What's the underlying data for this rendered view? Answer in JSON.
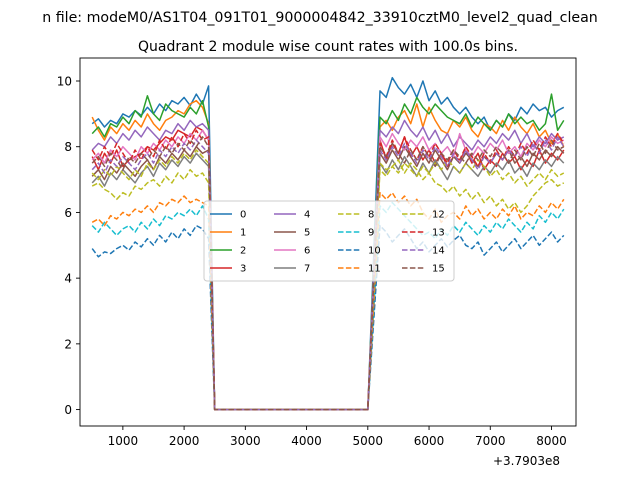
{
  "chart_data": {
    "type": "line",
    "suptitle": "n file: modeM0/AS1T04_091T01_9000004842_33910cztM0_level2_quad_clean",
    "title": "Quadrant 2 module wise count rates with 100.0s bins.",
    "xlabel": "",
    "ylabel": "",
    "offset_text": "+3.7903e8",
    "xlim": [
      300,
      8400
    ],
    "ylim": [
      -0.5,
      10.7
    ],
    "xticks": [
      1000,
      2000,
      3000,
      4000,
      5000,
      6000,
      7000,
      8000
    ],
    "xtick_labels": [
      "1000",
      "2000",
      "3000",
      "4000",
      "5000",
      "6000",
      "7000",
      "8000"
    ],
    "yticks": [
      0,
      2,
      4,
      6,
      8,
      10
    ],
    "ytick_labels": [
      "0",
      "2",
      "4",
      "6",
      "8",
      "10"
    ],
    "legend": {
      "placement": "center",
      "columns": 4
    },
    "x_start": 500,
    "x_step": 100,
    "gap": {
      "start": 2300,
      "zero_from": 2500,
      "zero_to": 5000,
      "end": 5200
    },
    "series": [
      {
        "name": "0",
        "color": "#1f77b4",
        "style": "solid",
        "pre": [
          8.7,
          8.85,
          8.6,
          8.8,
          8.7,
          9.0,
          8.9,
          9.1,
          8.95,
          9.2,
          9.0,
          9.3,
          9.1,
          9.4,
          9.3,
          9.5,
          9.25,
          9.6,
          9.3,
          9.85
        ],
        "post": [
          9.7,
          9.5,
          10.1,
          9.8,
          9.6,
          9.9,
          9.5,
          10.0,
          9.4,
          9.7,
          9.3,
          9.5,
          9.2,
          9.0,
          9.2,
          8.9,
          8.7,
          8.9,
          8.5,
          8.8,
          8.6,
          9.0,
          8.8,
          9.2,
          9.0,
          9.3,
          9.1,
          9.2,
          8.9,
          9.1,
          9.2
        ]
      },
      {
        "name": "1",
        "color": "#ff7f0e",
        "style": "solid",
        "pre": [
          8.9,
          8.5,
          8.2,
          8.6,
          8.4,
          8.7,
          8.5,
          8.8,
          8.6,
          9.0,
          8.7,
          8.5,
          8.8,
          8.9,
          9.1,
          9.0,
          9.3,
          9.4,
          9.2,
          8.7
        ],
        "post": [
          8.6,
          8.8,
          8.5,
          8.9,
          9.1,
          8.7,
          9.3,
          8.6,
          9.2,
          8.8,
          8.5,
          8.4,
          8.8,
          8.6,
          8.9,
          8.5,
          8.3,
          8.7,
          8.6,
          8.4,
          8.8,
          8.5,
          8.9,
          8.6,
          8.4,
          8.7,
          8.3,
          8.5,
          8.1,
          8.4,
          8.0
        ]
      },
      {
        "name": "2",
        "color": "#2ca02c",
        "style": "solid",
        "pre": [
          8.4,
          8.6,
          8.3,
          8.7,
          8.6,
          8.9,
          8.7,
          9.1,
          8.9,
          9.55,
          9.0,
          8.8,
          9.3,
          9.1,
          9.0,
          8.9,
          9.2,
          9.0,
          9.4,
          8.6
        ],
        "post": [
          8.9,
          8.7,
          9.1,
          8.8,
          9.3,
          9.0,
          9.5,
          9.2,
          9.0,
          9.3,
          9.1,
          8.9,
          8.8,
          8.7,
          9.0,
          8.6,
          8.9,
          8.7,
          8.5,
          8.8,
          8.6,
          9.0,
          8.7,
          8.9,
          8.7,
          8.8,
          8.5,
          8.7,
          9.6,
          8.5,
          8.8
        ]
      },
      {
        "name": "3",
        "color": "#d62728",
        "style": "solid",
        "pre": [
          7.7,
          7.3,
          7.8,
          7.5,
          7.9,
          7.4,
          7.6,
          7.7,
          7.8,
          8.0,
          7.9,
          8.1,
          8.3,
          8.2,
          8.5,
          8.4,
          8.3,
          8.6,
          8.5,
          8.2
        ],
        "post": [
          8.2,
          7.6,
          8.1,
          7.8,
          8.3,
          7.7,
          8.0,
          7.6,
          7.9,
          7.5,
          7.8,
          7.4,
          7.7,
          7.6,
          7.9,
          7.5,
          7.8,
          7.3,
          7.6,
          7.4,
          7.8,
          7.5,
          7.7,
          7.3,
          7.6,
          7.4,
          7.9,
          7.5,
          7.8,
          7.6,
          7.9
        ]
      },
      {
        "name": "4",
        "color": "#9467bd",
        "style": "solid",
        "pre": [
          7.9,
          8.1,
          8.0,
          8.3,
          8.1,
          8.4,
          8.2,
          8.5,
          8.3,
          8.6,
          8.4,
          8.2,
          8.5,
          8.4,
          8.7,
          8.5,
          8.8,
          8.6,
          8.7,
          8.5
        ],
        "post": [
          8.5,
          8.3,
          8.6,
          8.4,
          8.8,
          8.5,
          8.3,
          8.6,
          8.2,
          8.5,
          8.1,
          8.4,
          8.0,
          8.3,
          8.1,
          7.9,
          8.2,
          8.0,
          8.3,
          8.1,
          8.4,
          8.2,
          8.5,
          8.1,
          8.4,
          8.0,
          8.3,
          8.1,
          8.4,
          8.2,
          8.3
        ]
      },
      {
        "name": "5",
        "color": "#8c564b",
        "style": "solid",
        "pre": [
          7.1,
          7.3,
          7.0,
          7.4,
          7.2,
          7.5,
          7.3,
          7.1,
          7.4,
          7.6,
          7.3,
          7.7,
          7.5,
          7.8,
          7.6,
          7.9,
          7.7,
          8.0,
          7.8,
          7.9
        ],
        "post": [
          7.8,
          7.5,
          7.9,
          7.6,
          8.0,
          7.7,
          7.4,
          7.8,
          7.5,
          7.9,
          7.6,
          7.3,
          7.7,
          7.5,
          7.8,
          7.6,
          7.4,
          7.7,
          7.5,
          7.8,
          7.6,
          7.9,
          7.5,
          7.7,
          7.4,
          7.8,
          7.6,
          7.9,
          7.7,
          8.0,
          7.8
        ]
      },
      {
        "name": "6",
        "color": "#e377c2",
        "style": "solid",
        "pre": [
          7.6,
          7.8,
          7.5,
          7.9,
          7.7,
          8.0,
          7.8,
          7.6,
          8.0,
          7.8,
          8.1,
          7.9,
          8.2,
          8.0,
          8.3,
          8.1,
          8.4,
          8.2,
          8.5,
          8.2
        ],
        "post": [
          8.3,
          8.0,
          8.4,
          8.1,
          7.9,
          8.2,
          8.0,
          8.3,
          7.9,
          8.1,
          7.8,
          8.0,
          7.7,
          8.4,
          7.9,
          7.7,
          8.0,
          7.8,
          8.1,
          7.9,
          8.2,
          7.8,
          8.0,
          7.7,
          8.1,
          7.9,
          8.2,
          8.0,
          8.3,
          8.1,
          8.2
        ]
      },
      {
        "name": "7",
        "color": "#7f7f7f",
        "style": "solid",
        "pre": [
          6.9,
          7.1,
          6.8,
          7.2,
          7.0,
          7.3,
          7.1,
          6.9,
          7.2,
          7.4,
          7.1,
          7.5,
          7.3,
          7.6,
          7.4,
          7.7,
          7.5,
          7.8,
          7.6,
          7.4
        ],
        "post": [
          7.5,
          7.2,
          7.6,
          7.3,
          7.7,
          7.4,
          7.1,
          7.5,
          7.2,
          7.6,
          7.3,
          7.0,
          7.4,
          7.2,
          7.5,
          7.3,
          7.1,
          7.4,
          7.2,
          7.5,
          7.3,
          7.6,
          7.2,
          7.4,
          7.1,
          7.5,
          7.3,
          7.6,
          7.4,
          7.7,
          7.5
        ]
      },
      {
        "name": "8",
        "color": "#bcbd22",
        "style": "dashed",
        "pre": [
          6.8,
          6.9,
          6.7,
          6.6,
          6.4,
          6.6,
          6.5,
          6.8,
          6.7,
          6.9,
          7.0,
          6.8,
          7.1,
          6.9,
          7.2,
          7.0,
          7.3,
          7.1,
          7.2,
          6.9
        ],
        "post": [
          7.5,
          7.3,
          7.4,
          7.6,
          7.2,
          7.5,
          7.3,
          7.0,
          7.2,
          6.9,
          6.8,
          6.6,
          6.8,
          6.5,
          6.7,
          6.4,
          6.6,
          6.3,
          6.5,
          6.2,
          6.4,
          6.1,
          6.3,
          6.0,
          6.2,
          6.5,
          6.7,
          6.9,
          7.0,
          6.8,
          6.9
        ]
      },
      {
        "name": "9",
        "color": "#17becf",
        "style": "dashed",
        "pre": [
          5.6,
          5.4,
          5.7,
          5.5,
          5.3,
          5.5,
          5.6,
          5.4,
          5.7,
          5.5,
          5.8,
          5.6,
          5.9,
          5.8,
          6.0,
          5.9,
          6.1,
          5.9,
          6.2,
          5.8
        ],
        "post": [
          6.2,
          6.0,
          6.3,
          6.1,
          5.9,
          5.7,
          5.5,
          5.3,
          5.4,
          5.2,
          5.5,
          5.3,
          5.6,
          5.4,
          5.7,
          5.5,
          5.3,
          5.6,
          5.4,
          5.7,
          5.5,
          5.8,
          5.6,
          5.4,
          5.7,
          5.5,
          5.9,
          5.7,
          6.0,
          5.8,
          6.1
        ]
      },
      {
        "name": "10",
        "color": "#1f77b4",
        "style": "dashed",
        "pre": [
          4.9,
          4.65,
          4.8,
          4.75,
          4.9,
          5.0,
          4.85,
          5.1,
          4.95,
          5.2,
          5.0,
          5.3,
          5.1,
          5.4,
          5.2,
          5.5,
          5.3,
          5.6,
          5.5,
          5.2
        ],
        "post": [
          5.6,
          5.4,
          5.1,
          5.3,
          5.5,
          5.2,
          4.9,
          5.1,
          4.8,
          5.0,
          5.2,
          4.95,
          5.15,
          5.3,
          5.0,
          4.9,
          5.1,
          4.7,
          4.9,
          5.1,
          4.8,
          5.0,
          5.2,
          4.9,
          5.1,
          5.3,
          5.0,
          5.2,
          5.4,
          5.1,
          5.3
        ]
      },
      {
        "name": "11",
        "color": "#ff7f0e",
        "style": "dashed",
        "pre": [
          5.7,
          5.8,
          5.6,
          5.9,
          5.8,
          6.0,
          5.9,
          6.1,
          6.0,
          6.2,
          6.0,
          6.3,
          6.2,
          6.4,
          6.3,
          6.5,
          6.3,
          6.4,
          6.3,
          6.2
        ],
        "post": [
          6.6,
          6.4,
          6.6,
          6.3,
          6.5,
          6.2,
          6.4,
          6.0,
          5.8,
          6.1,
          5.7,
          5.9,
          6.0,
          5.8,
          6.2,
          5.9,
          6.1,
          5.8,
          6.0,
          5.8,
          6.1,
          5.9,
          6.2,
          5.8,
          6.0,
          5.9,
          6.2,
          6.0,
          6.3,
          6.1,
          6.4
        ]
      },
      {
        "name": "12",
        "color": "#bcbd22",
        "style": "dashed",
        "pre": [
          7.2,
          7.0,
          7.3,
          7.1,
          7.4,
          7.2,
          7.0,
          7.3,
          7.1,
          7.5,
          7.3,
          7.6,
          7.4,
          7.7,
          7.5,
          7.8,
          7.6,
          7.9,
          7.7,
          7.5
        ],
        "post": [
          7.3,
          7.1,
          7.4,
          7.2,
          7.5,
          7.3,
          7.1,
          7.4,
          7.2,
          7.5,
          7.3,
          7.6,
          7.4,
          7.2,
          7.5,
          7.3,
          7.6,
          7.4,
          7.1,
          7.3,
          7.0,
          7.2,
          6.9,
          7.1,
          6.8,
          7.0,
          7.2,
          7.0,
          7.3,
          7.1,
          7.2
        ]
      },
      {
        "name": "13",
        "color": "#d62728",
        "style": "dashed",
        "pre": [
          7.9,
          7.6,
          8.0,
          7.7,
          8.1,
          7.8,
          7.5,
          7.9,
          7.6,
          8.0,
          7.7,
          8.2,
          7.9,
          8.3,
          8.0,
          8.4,
          8.1,
          8.5,
          8.2,
          8.3
        ],
        "post": [
          8.1,
          7.7,
          8.2,
          7.8,
          8.3,
          7.9,
          7.6,
          8.0,
          7.7,
          8.1,
          7.8,
          7.5,
          7.9,
          7.6,
          8.0,
          7.7,
          7.4,
          7.8,
          7.5,
          7.9,
          7.6,
          8.0,
          7.7,
          8.1,
          7.8,
          8.2,
          7.9,
          8.3,
          8.0,
          8.4,
          8.1
        ]
      },
      {
        "name": "14",
        "color": "#9467bd",
        "style": "dashed",
        "pre": [
          7.3,
          7.5,
          7.2,
          7.6,
          7.4,
          7.7,
          7.5,
          7.3,
          7.6,
          7.8,
          7.5,
          7.9,
          7.7,
          8.0,
          7.8,
          8.1,
          7.9,
          8.2,
          8.0,
          7.8
        ],
        "post": [
          7.9,
          7.6,
          8.0,
          7.7,
          8.1,
          7.8,
          7.5,
          7.9,
          7.6,
          8.0,
          7.7,
          7.4,
          7.8,
          7.5,
          7.9,
          7.6,
          7.3,
          7.7,
          7.5,
          7.8,
          7.6,
          7.9,
          7.7,
          8.0,
          7.7,
          8.1,
          7.8,
          8.2,
          7.9,
          8.3,
          8.0
        ]
      },
      {
        "name": "15",
        "color": "#8c564b",
        "style": "dashed",
        "pre": [
          7.5,
          7.7,
          7.4,
          7.8,
          7.6,
          7.3,
          7.7,
          7.5,
          7.8,
          7.6,
          7.9,
          7.7,
          8.0,
          7.8,
          8.1,
          7.9,
          8.2,
          8.0,
          8.3,
          8.0
        ],
        "post": [
          8.0,
          7.7,
          8.1,
          7.8,
          7.5,
          7.9,
          7.6,
          8.0,
          7.7,
          7.4,
          7.8,
          7.6,
          7.9,
          7.7,
          7.5,
          7.8,
          7.6,
          7.9,
          7.7,
          8.0,
          7.8,
          7.5,
          7.9,
          7.6,
          8.0,
          7.7,
          8.1,
          7.8,
          8.2,
          7.9,
          8.0
        ]
      }
    ]
  }
}
